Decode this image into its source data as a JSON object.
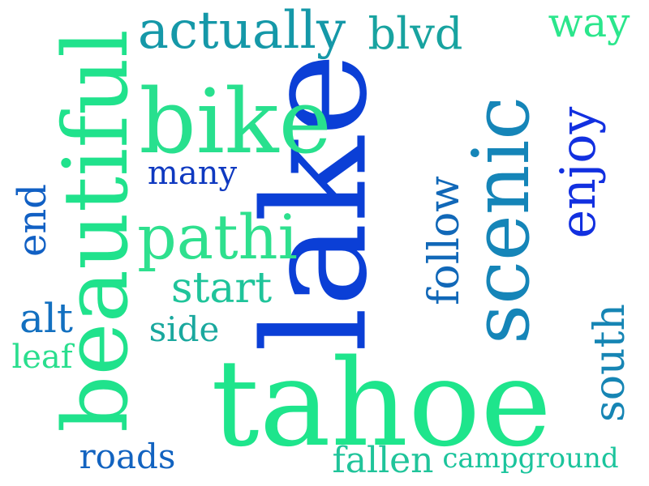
{
  "word_cloud": {
    "words": [
      {
        "key": "lake",
        "text": "lake",
        "color": "#0b3fd6"
      },
      {
        "key": "tahoe",
        "text": "tahoe",
        "color": "#1ee58c"
      },
      {
        "key": "beautiful",
        "text": "beautiful",
        "color": "#20e28c"
      },
      {
        "key": "bike",
        "text": "bike",
        "color": "#28e08e"
      },
      {
        "key": "scenic",
        "text": "scenic",
        "color": "#1585b8"
      },
      {
        "key": "pathi",
        "text": "pathi",
        "color": "#2ee08e"
      },
      {
        "key": "actually",
        "text": "actually",
        "color": "#1598a8"
      },
      {
        "key": "blvd",
        "text": "blvd",
        "color": "#18a3a0"
      },
      {
        "key": "way",
        "text": "way",
        "color": "#2be68c"
      },
      {
        "key": "enjoy",
        "text": "enjoy",
        "color": "#1230e0"
      },
      {
        "key": "follow",
        "text": "follow",
        "color": "#1168b8"
      },
      {
        "key": "many",
        "text": "many",
        "color": "#0f39c0"
      },
      {
        "key": "start",
        "text": "start",
        "color": "#1fc49a"
      },
      {
        "key": "end",
        "text": "end",
        "color": "#1160c4"
      },
      {
        "key": "alt",
        "text": "alt",
        "color": "#1370c0"
      },
      {
        "key": "side",
        "text": "side",
        "color": "#1aa89e"
      },
      {
        "key": "leaf",
        "text": "leaf",
        "color": "#2ade8e"
      },
      {
        "key": "south",
        "text": "south",
        "color": "#1685b4"
      },
      {
        "key": "roads",
        "text": "roads",
        "color": "#1263c0"
      },
      {
        "key": "fallen",
        "text": "fallen",
        "color": "#20c49a"
      },
      {
        "key": "campground",
        "text": "campground",
        "color": "#1bc49c"
      }
    ]
  }
}
